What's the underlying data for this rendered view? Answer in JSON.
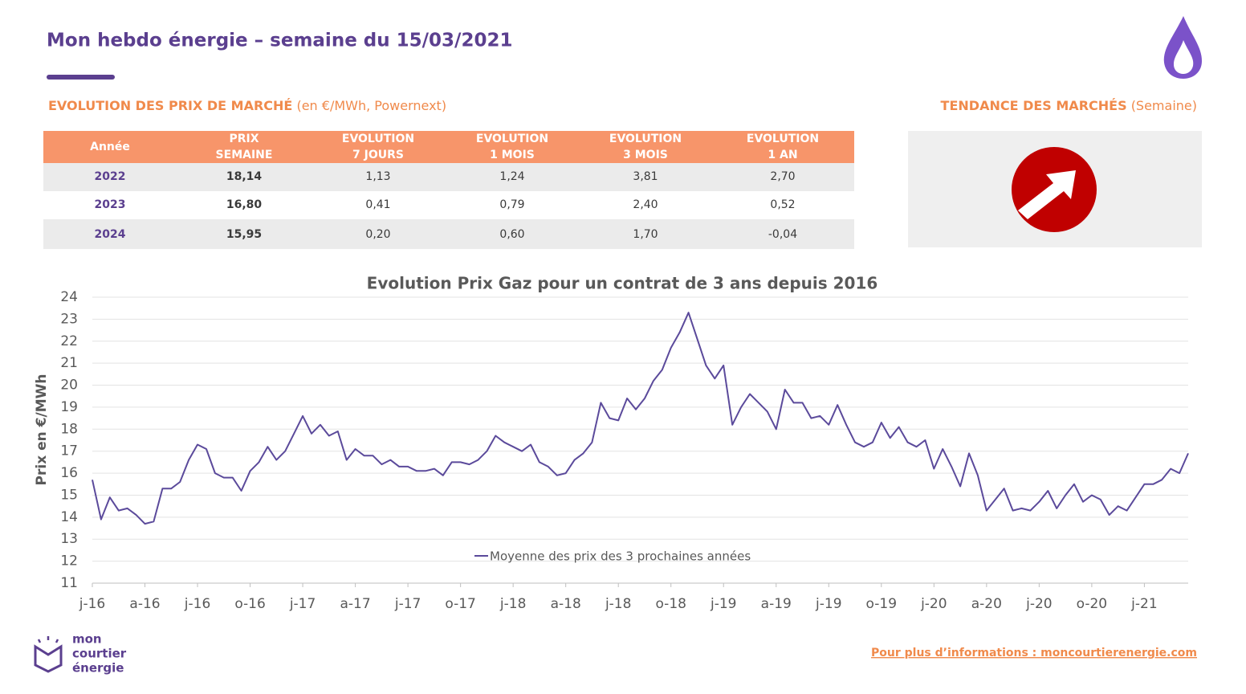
{
  "header": {
    "title": "Mon hebdo énergie – semaine du 15/03/2021"
  },
  "market": {
    "title": "EVOLUTION DES PRIX DE MARCHÉ",
    "subtitle": "(en €/MWh, Powernext)"
  },
  "trend": {
    "title": "TENDANCE DES MARCHÉS",
    "subtitle": "(Semaine)"
  },
  "table": {
    "header": [
      [
        "Année"
      ],
      [
        "PRIX",
        "SEMAINE"
      ],
      [
        "EVOLUTION",
        "7 JOURS"
      ],
      [
        "EVOLUTION",
        "1 MOIS"
      ],
      [
        "EVOLUTION",
        "3 MOIS"
      ],
      [
        "EVOLUTION",
        "1 AN"
      ]
    ],
    "rows": [
      [
        "2022",
        "18,14",
        "1,13",
        "1,24",
        "3,81",
        "2,70"
      ],
      [
        "2023",
        "16,80",
        "0,41",
        "0,79",
        "2,40",
        "0,52"
      ],
      [
        "2024",
        "15,95",
        "0,20",
        "0,60",
        "1,70",
        "-0,04"
      ]
    ]
  },
  "chart_data": {
    "type": "line",
    "title": "Evolution Prix Gaz pour un contrat de 3 ans depuis 2016",
    "y_label": "Prix en €/MWh",
    "ylim": [
      11,
      24
    ],
    "yticks": [
      11,
      12,
      13,
      14,
      15,
      16,
      17,
      18,
      19,
      20,
      21,
      22,
      23,
      24
    ],
    "grid": true,
    "legend": "bottom",
    "categories": [
      "j-16",
      null,
      null,
      null,
      null,
      null,
      "a-16",
      null,
      null,
      null,
      null,
      null,
      "j-16",
      null,
      null,
      null,
      null,
      null,
      "o-16",
      null,
      null,
      null,
      null,
      null,
      "j-17",
      null,
      null,
      null,
      null,
      null,
      "a-17",
      null,
      null,
      null,
      null,
      null,
      "j-17",
      null,
      null,
      null,
      null,
      null,
      "o-17",
      null,
      null,
      null,
      null,
      null,
      "j-18",
      null,
      null,
      null,
      null,
      null,
      "a-18",
      null,
      null,
      null,
      null,
      null,
      "j-18",
      null,
      null,
      null,
      null,
      null,
      "o-18",
      null,
      null,
      null,
      null,
      null,
      "j-19",
      null,
      null,
      null,
      null,
      null,
      "a-19",
      null,
      null,
      null,
      null,
      null,
      "j-19",
      null,
      null,
      null,
      null,
      null,
      "o-19",
      null,
      null,
      null,
      null,
      null,
      "j-20",
      null,
      null,
      null,
      null,
      null,
      "a-20",
      null,
      null,
      null,
      null,
      null,
      "j-20",
      null,
      null,
      null,
      null,
      null,
      "o-20",
      null,
      null,
      null,
      null,
      null,
      "j-21",
      null,
      null,
      null,
      null,
      null
    ],
    "series": [
      {
        "name": "Moyenne des prix des 3 prochaines années",
        "color": "#5b4a9b",
        "values": [
          15.7,
          13.9,
          14.9,
          14.3,
          14.4,
          14.1,
          13.7,
          13.8,
          15.3,
          15.3,
          15.6,
          16.6,
          17.3,
          17.1,
          16.0,
          15.8,
          15.8,
          15.2,
          16.1,
          16.5,
          17.2,
          16.6,
          17.0,
          17.8,
          18.6,
          17.8,
          18.2,
          17.7,
          17.9,
          16.6,
          17.1,
          16.8,
          16.8,
          16.4,
          16.6,
          16.3,
          16.3,
          16.1,
          16.1,
          16.2,
          15.9,
          16.5,
          16.5,
          16.4,
          16.6,
          17.0,
          17.7,
          17.4,
          17.2,
          17.0,
          17.3,
          16.5,
          16.3,
          15.9,
          16.0,
          16.6,
          16.9,
          17.4,
          19.2,
          18.5,
          18.4,
          19.4,
          18.9,
          19.4,
          20.2,
          20.7,
          21.7,
          22.4,
          23.3,
          22.1,
          20.9,
          20.3,
          20.9,
          18.2,
          19.0,
          19.6,
          19.2,
          18.8,
          18.0,
          19.8,
          19.2,
          19.2,
          18.5,
          18.6,
          18.2,
          19.1,
          18.2,
          17.4,
          17.2,
          17.4,
          18.3,
          17.6,
          18.1,
          17.4,
          17.2,
          17.5,
          16.2,
          17.1,
          16.3,
          15.4,
          16.9,
          15.9,
          14.3,
          14.8,
          15.3,
          14.3,
          14.4,
          14.3,
          14.7,
          15.2,
          14.4,
          15.0,
          15.5,
          14.7,
          15.0,
          14.8,
          14.1,
          14.5,
          14.3,
          14.9,
          15.5,
          15.5,
          15.7,
          16.2,
          16.0,
          16.9
        ]
      }
    ]
  },
  "footer": {
    "logo": [
      "mon",
      "courtier",
      "énergie"
    ],
    "link": "Pour plus d’informations : moncourtierenergie.com"
  }
}
